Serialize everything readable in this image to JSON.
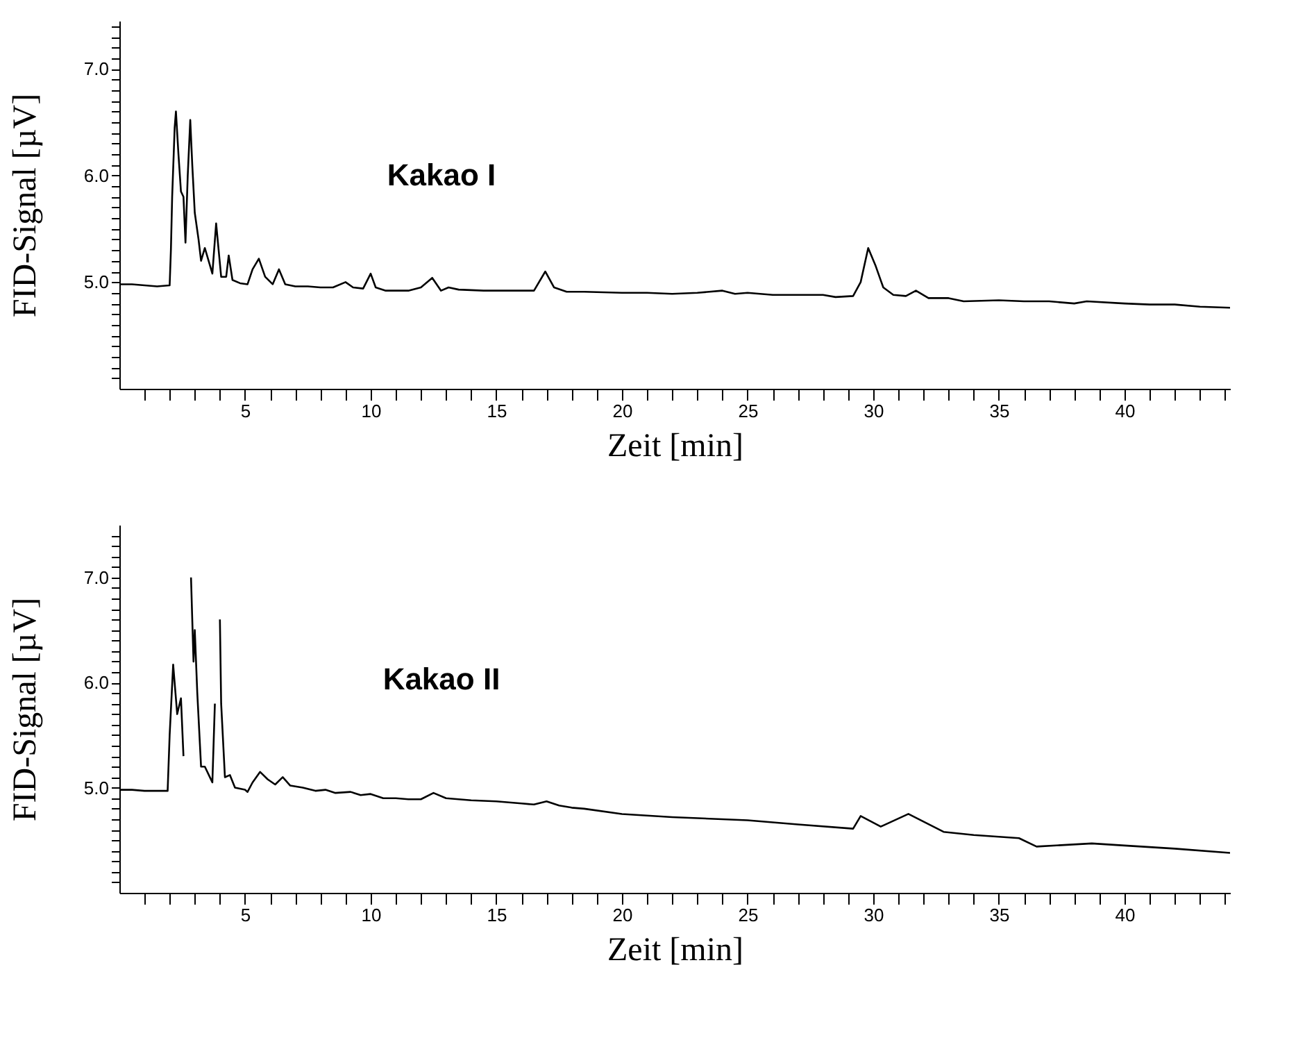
{
  "chart_data": [
    {
      "type": "line",
      "ylabel": "FID-Signal [µV]",
      "xlabel": "Zeit [min]",
      "annotations": [
        "Kakao I"
      ],
      "color": "#000000",
      "xlim": [
        0,
        44.2
      ],
      "ylim": [
        4.0,
        7.45
      ],
      "xticks": [
        {
          "value": 1,
          "label": null
        },
        {
          "value": 2,
          "label": null
        },
        {
          "value": 3,
          "label": null
        },
        {
          "value": 4,
          "label": null
        },
        5,
        {
          "value": 6,
          "label": null
        },
        {
          "value": 7,
          "label": null
        },
        {
          "value": 8,
          "label": null
        },
        {
          "value": 9,
          "label": null
        },
        10,
        {
          "value": 11,
          "label": null
        },
        {
          "value": 12,
          "label": null
        },
        {
          "value": 13,
          "label": null
        },
        {
          "value": 14,
          "label": null
        },
        15,
        {
          "value": 16,
          "label": null
        },
        {
          "value": 17,
          "label": null
        },
        {
          "value": 18,
          "label": null
        },
        {
          "value": 19,
          "label": null
        },
        20,
        {
          "value": 21,
          "label": null
        },
        {
          "value": 22,
          "label": null
        },
        {
          "value": 23,
          "label": null
        },
        {
          "value": 24,
          "label": null
        },
        25,
        {
          "value": 26,
          "label": null
        },
        {
          "value": 27,
          "label": null
        },
        {
          "value": 28,
          "label": null
        },
        {
          "value": 29,
          "label": null
        },
        30,
        {
          "value": 31,
          "label": null
        },
        {
          "value": 32,
          "label": null
        },
        {
          "value": 33,
          "label": null
        },
        {
          "value": 34,
          "label": null
        },
        35,
        {
          "value": 36,
          "label": null
        },
        {
          "value": 37,
          "label": null
        },
        {
          "value": 38,
          "label": null
        },
        {
          "value": 39,
          "label": null
        },
        40,
        {
          "value": 41,
          "label": null
        },
        {
          "value": 42,
          "label": null
        },
        {
          "value": 43,
          "label": null
        },
        {
          "value": 44,
          "label": null
        }
      ],
      "yticks": [
        {
          "value": 4.1,
          "label": null
        },
        {
          "value": 4.2,
          "label": null
        },
        {
          "value": 4.3,
          "label": null
        },
        {
          "value": 4.4,
          "label": null
        },
        {
          "value": 4.5,
          "label": null
        },
        {
          "value": 4.6,
          "label": null
        },
        {
          "value": 4.7,
          "label": null
        },
        {
          "value": 4.8,
          "label": null
        },
        {
          "value": 4.9,
          "label": null
        },
        {
          "value": 5,
          "label": "5.0"
        },
        {
          "value": 5.1,
          "label": null
        },
        {
          "value": 5.2,
          "label": null
        },
        {
          "value": 5.3,
          "label": null
        },
        {
          "value": 5.4,
          "label": null
        },
        {
          "value": 5.5,
          "label": null
        },
        {
          "value": 5.6,
          "label": null
        },
        {
          "value": 5.7,
          "label": null
        },
        {
          "value": 5.8,
          "label": null
        },
        {
          "value": 5.9,
          "label": null
        },
        {
          "value": 6,
          "label": "6.0"
        },
        {
          "value": 6.1,
          "label": null
        },
        {
          "value": 6.2,
          "label": null
        },
        {
          "value": 6.3,
          "label": null
        },
        {
          "value": 6.4,
          "label": null
        },
        {
          "value": 6.5,
          "label": null
        },
        {
          "value": 6.6,
          "label": null
        },
        {
          "value": 6.7,
          "label": null
        },
        {
          "value": 6.8,
          "label": null
        },
        {
          "value": 6.9,
          "label": null
        },
        {
          "value": 7,
          "label": "7.0"
        },
        {
          "value": 7.1,
          "label": null
        },
        {
          "value": 7.2,
          "label": null
        },
        {
          "value": 7.3,
          "label": null
        },
        {
          "value": 7.4,
          "label": null
        }
      ],
      "x": [
        0,
        0.5,
        1.0,
        1.5,
        2.0,
        2.05,
        2.1,
        2.2,
        2.25,
        2.35,
        2.45,
        2.55,
        2.63,
        2.72,
        2.82,
        2.9,
        3.0,
        3.15,
        3.25,
        3.4,
        3.55,
        3.7,
        3.85,
        3.95,
        4.05,
        4.25,
        4.35,
        4.5,
        4.8,
        5.1,
        5.3,
        5.55,
        5.8,
        6.1,
        6.35,
        6.6,
        7.0,
        7.5,
        8.0,
        8.5,
        9.0,
        9.3,
        9.7,
        10.0,
        10.2,
        10.6,
        11.0,
        11.5,
        12.0,
        12.45,
        12.8,
        13.1,
        13.5,
        14.5,
        15.5,
        16.5,
        16.95,
        17.3,
        17.8,
        18.5,
        20,
        21,
        22,
        23,
        24,
        24.5,
        25,
        26,
        27,
        28,
        28.5,
        29.2,
        29.5,
        29.8,
        30.1,
        30.4,
        30.8,
        31.3,
        31.7,
        32.2,
        33,
        33.6,
        35,
        36,
        37,
        38,
        38.5,
        40,
        41,
        42,
        43,
        44.2
      ],
      "values": [
        4.98,
        4.98,
        4.97,
        4.96,
        4.97,
        5.3,
        5.8,
        6.45,
        6.6,
        6.2,
        5.85,
        5.8,
        5.37,
        6.0,
        6.52,
        6.1,
        5.65,
        5.4,
        5.2,
        5.32,
        5.2,
        5.08,
        5.55,
        5.3,
        5.05,
        5.05,
        5.25,
        5.02,
        4.99,
        4.98,
        5.12,
        5.22,
        5.05,
        4.98,
        5.12,
        4.98,
        4.96,
        4.96,
        4.95,
        4.95,
        5.0,
        4.95,
        4.94,
        5.08,
        4.95,
        4.92,
        4.92,
        4.92,
        4.95,
        5.04,
        4.92,
        4.95,
        4.93,
        4.92,
        4.92,
        4.92,
        5.1,
        4.95,
        4.91,
        4.91,
        4.9,
        4.9,
        4.89,
        4.9,
        4.92,
        4.89,
        4.9,
        4.88,
        4.88,
        4.88,
        4.86,
        4.87,
        5.0,
        5.32,
        5.15,
        4.95,
        4.88,
        4.87,
        4.92,
        4.85,
        4.85,
        4.82,
        4.83,
        4.82,
        4.82,
        4.8,
        4.82,
        4.8,
        4.79,
        4.79,
        4.77,
        4.76
      ]
    },
    {
      "type": "line",
      "ylabel": "FID-Signal [µV]",
      "xlabel": "Zeit [min]",
      "annotations": [
        "Kakao II"
      ],
      "color": "#000000",
      "xlim": [
        0,
        44.2
      ],
      "ylim": [
        4.0,
        7.5
      ],
      "xticks": [
        {
          "value": 1,
          "label": null
        },
        {
          "value": 2,
          "label": null
        },
        {
          "value": 3,
          "label": null
        },
        {
          "value": 4,
          "label": null
        },
        5,
        {
          "value": 6,
          "label": null
        },
        {
          "value": 7,
          "label": null
        },
        {
          "value": 8,
          "label": null
        },
        {
          "value": 9,
          "label": null
        },
        10,
        {
          "value": 11,
          "label": null
        },
        {
          "value": 12,
          "label": null
        },
        {
          "value": 13,
          "label": null
        },
        {
          "value": 14,
          "label": null
        },
        15,
        {
          "value": 16,
          "label": null
        },
        {
          "value": 17,
          "label": null
        },
        {
          "value": 18,
          "label": null
        },
        {
          "value": 19,
          "label": null
        },
        20,
        {
          "value": 21,
          "label": null
        },
        {
          "value": 22,
          "label": null
        },
        {
          "value": 23,
          "label": null
        },
        {
          "value": 24,
          "label": null
        },
        25,
        {
          "value": 26,
          "label": null
        },
        {
          "value": 27,
          "label": null
        },
        {
          "value": 28,
          "label": null
        },
        {
          "value": 29,
          "label": null
        },
        30,
        {
          "value": 31,
          "label": null
        },
        {
          "value": 32,
          "label": null
        },
        {
          "value": 33,
          "label": null
        },
        {
          "value": 34,
          "label": null
        },
        35,
        {
          "value": 36,
          "label": null
        },
        {
          "value": 37,
          "label": null
        },
        {
          "value": 38,
          "label": null
        },
        {
          "value": 39,
          "label": null
        },
        40,
        {
          "value": 41,
          "label": null
        },
        {
          "value": 42,
          "label": null
        },
        {
          "value": 43,
          "label": null
        },
        {
          "value": 44,
          "label": null
        }
      ],
      "yticks": [
        {
          "value": 4.1,
          "label": null
        },
        {
          "value": 4.2,
          "label": null
        },
        {
          "value": 4.3,
          "label": null
        },
        {
          "value": 4.4,
          "label": null
        },
        {
          "value": 4.5,
          "label": null
        },
        {
          "value": 4.6,
          "label": null
        },
        {
          "value": 4.7,
          "label": null
        },
        {
          "value": 4.8,
          "label": null
        },
        {
          "value": 4.9,
          "label": null
        },
        {
          "value": 5,
          "label": "5.0"
        },
        {
          "value": 5.1,
          "label": null
        },
        {
          "value": 5.2,
          "label": null
        },
        {
          "value": 5.3,
          "label": null
        },
        {
          "value": 5.4,
          "label": null
        },
        {
          "value": 5.5,
          "label": null
        },
        {
          "value": 5.6,
          "label": null
        },
        {
          "value": 5.7,
          "label": null
        },
        {
          "value": 5.8,
          "label": null
        },
        {
          "value": 5.9,
          "label": null
        },
        {
          "value": 6,
          "label": "6.0"
        },
        {
          "value": 6.1,
          "label": null
        },
        {
          "value": 6.2,
          "label": null
        },
        {
          "value": 6.3,
          "label": null
        },
        {
          "value": 6.4,
          "label": null
        },
        {
          "value": 6.5,
          "label": null
        },
        {
          "value": 6.6,
          "label": null
        },
        {
          "value": 6.7,
          "label": null
        },
        {
          "value": 6.8,
          "label": null
        },
        {
          "value": 6.9,
          "label": null
        },
        {
          "value": 7,
          "label": "7.0"
        },
        {
          "value": 7.1,
          "label": null
        },
        {
          "value": 7.2,
          "label": null
        },
        {
          "value": 7.3,
          "label": null
        },
        {
          "value": 7.4,
          "label": null
        }
      ],
      "x": [
        0,
        0.5,
        1.0,
        1.5,
        1.92,
        2.0,
        2.14,
        2.3,
        2.45,
        2.55,
        2.69,
        2.75,
        2.85,
        2.95,
        3.0,
        3.1,
        3.25,
        3.4,
        3.6,
        3.7,
        3.8,
        3.9,
        4.0,
        4.05,
        4.2,
        4.4,
        4.6,
        5.0,
        5.1,
        5.3,
        5.6,
        5.9,
        6.2,
        6.5,
        6.8,
        7.3,
        7.8,
        8.2,
        8.6,
        9.2,
        9.6,
        10.0,
        10.5,
        11,
        11.5,
        12,
        12.5,
        13,
        14,
        15,
        16,
        16.5,
        17,
        17.5,
        18,
        18.5,
        20,
        22,
        25,
        27,
        29.2,
        29.5,
        30.3,
        31.4,
        32.8,
        34,
        35.8,
        36.5,
        38.7,
        40,
        42,
        44.2
      ],
      "values": [
        4.98,
        4.98,
        4.97,
        4.97,
        4.97,
        5.5,
        6.17,
        5.7,
        5.85,
        5.3,
        null,
        null,
        7.0,
        6.2,
        6.5,
        5.9,
        5.2,
        5.2,
        5.1,
        5.05,
        5.8,
        null,
        6.6,
        5.8,
        5.1,
        5.12,
        5.0,
        4.98,
        4.96,
        5.05,
        5.15,
        5.08,
        5.03,
        5.1,
        5.02,
        5.0,
        4.97,
        4.98,
        4.95,
        4.96,
        4.93,
        4.94,
        4.9,
        4.9,
        4.89,
        4.89,
        4.95,
        4.9,
        4.88,
        4.87,
        4.85,
        4.84,
        4.87,
        4.83,
        4.81,
        4.8,
        4.75,
        4.72,
        4.69,
        4.65,
        4.61,
        4.73,
        4.63,
        4.75,
        4.58,
        4.55,
        4.52,
        4.44,
        4.47,
        4.45,
        4.42,
        4.38
      ]
    }
  ]
}
